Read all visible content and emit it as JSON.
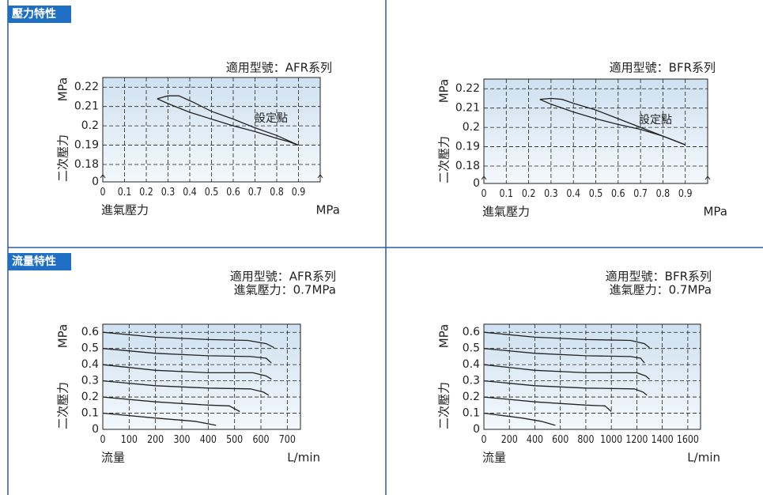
{
  "sections": [
    "壓力特性",
    "流量特性"
  ],
  "chart_data": [
    {
      "type": "line",
      "annotations": [
        "適用型號：AFR系列"
      ],
      "setpoint_label": "設定點",
      "xlabel": "進氣壓力",
      "xunit": "MPa",
      "ylabel": "二次壓力",
      "yunit": "MPa",
      "xlim": [
        0,
        1.0
      ],
      "xticks": [
        0,
        0.1,
        0.2,
        0.3,
        0.4,
        0.5,
        0.6,
        0.7,
        0.8,
        0.9
      ],
      "ylim": [
        0,
        0.225
      ],
      "y_break": [
        0,
        0.171
      ],
      "yticks": [
        0,
        0.18,
        0.19,
        0.2,
        0.21,
        0.22
      ],
      "grid": true,
      "series": [
        {
          "color": "#222222",
          "x": [
            0.25,
            0.3,
            0.35,
            0.42,
            0.5,
            0.6,
            0.7,
            0.8,
            0.9
          ],
          "values": [
            0.214,
            0.2155,
            0.2155,
            0.212,
            0.2075,
            0.2035,
            0.199,
            0.195,
            0.19
          ]
        },
        {
          "color": "#222222",
          "x": [
            0.25,
            0.3,
            0.4,
            0.5,
            0.6,
            0.7,
            0.8,
            0.85,
            0.9
          ],
          "values": [
            0.214,
            0.2115,
            0.207,
            0.2035,
            0.2,
            0.197,
            0.1935,
            0.192,
            0.19
          ]
        }
      ]
    },
    {
      "type": "line",
      "annotations": [
        "適用型號：BFR系列"
      ],
      "setpoint_label": "設定點",
      "xlabel": "進氣壓力",
      "xunit": "MPa",
      "ylabel": "二次壓力",
      "yunit": "MPa",
      "xlim": [
        0,
        1.0
      ],
      "xticks": [
        0,
        0.1,
        0.2,
        0.3,
        0.4,
        0.5,
        0.6,
        0.7,
        0.8,
        0.9
      ],
      "ylim": [
        0,
        0.225
      ],
      "y_break": [
        0,
        0.171
      ],
      "yticks": [
        0,
        0.18,
        0.19,
        0.2,
        0.21,
        0.22
      ],
      "grid": true,
      "series": [
        {
          "color": "#222222",
          "x": [
            0.25,
            0.3,
            0.35,
            0.4,
            0.5,
            0.6,
            0.7,
            0.8,
            0.9
          ],
          "values": [
            0.2145,
            0.215,
            0.2145,
            0.2125,
            0.209,
            0.2045,
            0.2,
            0.1955,
            0.191
          ]
        },
        {
          "color": "#222222",
          "x": [
            0.25,
            0.3,
            0.4,
            0.5,
            0.6,
            0.7,
            0.8,
            0.9
          ],
          "values": [
            0.2145,
            0.212,
            0.208,
            0.2045,
            0.2015,
            0.199,
            0.1955,
            0.191
          ]
        }
      ]
    },
    {
      "type": "line",
      "annotations": [
        "適用型號：AFR系列",
        "進氣壓力：0.7MPa"
      ],
      "xlabel": "流量",
      "xunit": "L/min",
      "ylabel": "二次壓力",
      "yunit": "MPa",
      "xlim": [
        0,
        750
      ],
      "xticks": [
        0,
        100,
        200,
        300,
        400,
        500,
        600,
        700
      ],
      "ylim": [
        0,
        0.65
      ],
      "yticks": [
        0,
        0.1,
        0.2,
        0.3,
        0.4,
        0.5,
        0.6
      ],
      "grid": true,
      "series": [
        {
          "color": "#222222",
          "x": [
            0,
            200,
            400,
            550,
            620,
            650
          ],
          "values": [
            0.6,
            0.57,
            0.555,
            0.55,
            0.53,
            0.505
          ]
        },
        {
          "color": "#222222",
          "x": [
            0,
            200,
            400,
            560,
            620,
            640
          ],
          "values": [
            0.5,
            0.47,
            0.455,
            0.45,
            0.44,
            0.41
          ]
        },
        {
          "color": "#222222",
          "x": [
            0,
            200,
            400,
            570,
            620,
            640
          ],
          "values": [
            0.4,
            0.365,
            0.35,
            0.35,
            0.33,
            0.31
          ]
        },
        {
          "color": "#222222",
          "x": [
            0,
            200,
            400,
            560,
            610,
            630
          ],
          "values": [
            0.3,
            0.27,
            0.255,
            0.25,
            0.23,
            0.21
          ]
        },
        {
          "color": "#222222",
          "x": [
            0,
            200,
            400,
            480,
            520
          ],
          "values": [
            0.2,
            0.17,
            0.15,
            0.145,
            0.11
          ]
        },
        {
          "color": "#222222",
          "x": [
            0,
            200,
            350,
            430
          ],
          "values": [
            0.1,
            0.07,
            0.05,
            0.025
          ]
        }
      ]
    },
    {
      "type": "line",
      "annotations": [
        "適用型號：BFR系列",
        "進氣壓力：0.7MPa"
      ],
      "xlabel": "流量",
      "xunit": "L/min",
      "ylabel": "二次壓力",
      "yunit": "MPa",
      "xlim": [
        0,
        1700
      ],
      "xticks": [
        0,
        200,
        400,
        600,
        800,
        1000,
        1200,
        1400,
        1600
      ],
      "ylim": [
        0,
        0.65
      ],
      "yticks": [
        0,
        0.1,
        0.2,
        0.3,
        0.4,
        0.5,
        0.6
      ],
      "grid": true,
      "series": [
        {
          "color": "#222222",
          "x": [
            0,
            400,
            800,
            1150,
            1260,
            1300
          ],
          "values": [
            0.6,
            0.57,
            0.555,
            0.55,
            0.53,
            0.505
          ]
        },
        {
          "color": "#222222",
          "x": [
            0,
            400,
            800,
            1150,
            1230,
            1260
          ],
          "values": [
            0.5,
            0.47,
            0.455,
            0.45,
            0.44,
            0.41
          ]
        },
        {
          "color": "#222222",
          "x": [
            0,
            400,
            800,
            1200,
            1270,
            1300
          ],
          "values": [
            0.4,
            0.365,
            0.35,
            0.35,
            0.33,
            0.31
          ]
        },
        {
          "color": "#222222",
          "x": [
            0,
            400,
            800,
            1180,
            1250,
            1280
          ],
          "values": [
            0.3,
            0.27,
            0.255,
            0.25,
            0.23,
            0.21
          ]
        },
        {
          "color": "#222222",
          "x": [
            0,
            400,
            800,
            950,
            1000
          ],
          "values": [
            0.2,
            0.17,
            0.15,
            0.145,
            0.11
          ]
        },
        {
          "color": "#222222",
          "x": [
            0,
            300,
            450,
            560
          ],
          "values": [
            0.1,
            0.07,
            0.05,
            0.025
          ]
        }
      ]
    }
  ]
}
